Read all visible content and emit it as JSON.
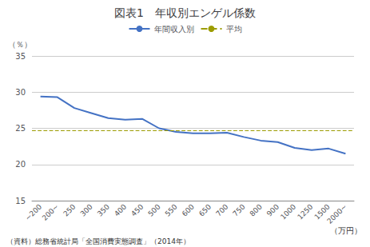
{
  "chart_data": {
    "type": "line",
    "title": "図表1　年収別エンゲル係数",
    "xlabel": "（万円）",
    "ylabel": "（％）",
    "source": "（資料）総務省統計局「全国消費実態調査」（2014年）",
    "categories": [
      "~200",
      "200~",
      "250",
      "300",
      "350",
      "400",
      "450",
      "500",
      "550",
      "600",
      "650",
      "700",
      "750",
      "800",
      "900",
      "1000",
      "1250",
      "1500",
      "2000~"
    ],
    "series": [
      {
        "name": "年間収入別",
        "type": "line",
        "color": "#4472C4",
        "line_style": "solid",
        "values": [
          29.4,
          29.3,
          27.8,
          27.1,
          26.4,
          26.2,
          26.3,
          25.0,
          24.5,
          24.3,
          24.3,
          24.4,
          23.8,
          23.3,
          23.1,
          22.3,
          22.0,
          22.2,
          21.5
        ]
      },
      {
        "name": "平均",
        "type": "hline",
        "color": "#9C9C00",
        "line_style": "dashed",
        "value": 24.7
      }
    ],
    "ylim": [
      15,
      35
    ],
    "yticks": [
      15,
      20,
      25,
      30,
      35
    ],
    "grid": true,
    "legend": "upper center"
  }
}
